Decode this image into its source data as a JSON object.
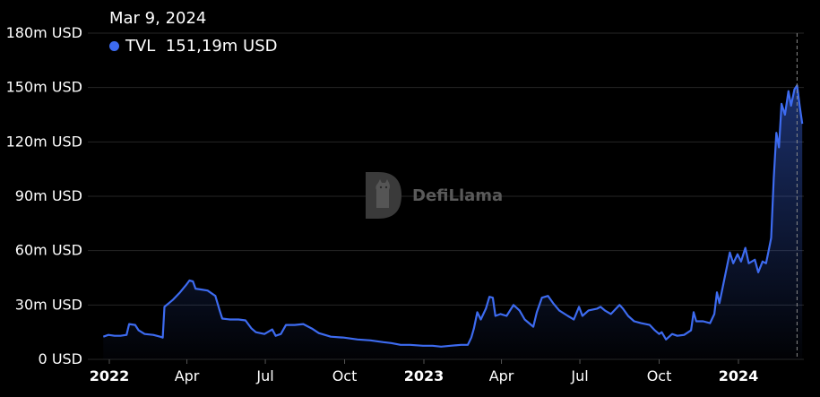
{
  "tooltip": {
    "date": "Mar 9, 2024",
    "series_label": "TVL",
    "value_text": "151,19m USD"
  },
  "watermark": {
    "text": "DefiLlama"
  },
  "colors": {
    "line": "#3d6bf0",
    "background": "#000000",
    "grid": "#262626",
    "crosshair": "#8a8a8a"
  },
  "chart_data": {
    "type": "area",
    "series": [
      {
        "name": "TVL",
        "unit": "m USD"
      }
    ],
    "ylim": [
      0,
      180
    ],
    "y_ticks": [
      {
        "value": 0,
        "label": "0 USD"
      },
      {
        "value": 30,
        "label": "30m USD"
      },
      {
        "value": 60,
        "label": "60m USD"
      },
      {
        "value": 90,
        "label": "90m USD"
      },
      {
        "value": 120,
        "label": "120m USD"
      },
      {
        "value": 150,
        "label": "150m USD"
      },
      {
        "value": 180,
        "label": "180m USD"
      }
    ],
    "x_ticks": [
      {
        "date": "2022-01-01",
        "label": "2022",
        "bold": true
      },
      {
        "date": "2022-04-01",
        "label": "Apr",
        "bold": false
      },
      {
        "date": "2022-07-01",
        "label": "Jul",
        "bold": false
      },
      {
        "date": "2022-10-01",
        "label": "Oct",
        "bold": false
      },
      {
        "date": "2023-01-01",
        "label": "2023",
        "bold": true
      },
      {
        "date": "2023-04-01",
        "label": "Apr",
        "bold": false
      },
      {
        "date": "2023-07-01",
        "label": "Jul",
        "bold": false
      },
      {
        "date": "2023-10-01",
        "label": "Oct",
        "bold": false
      },
      {
        "date": "2024-01-01",
        "label": "2024",
        "bold": true
      }
    ],
    "crosshair_date": "2024-03-09",
    "points": [
      [
        "2021-12-25",
        12.5
      ],
      [
        "2021-12-31",
        13.5
      ],
      [
        "2022-01-07",
        13
      ],
      [
        "2022-01-14",
        13
      ],
      [
        "2022-01-21",
        13.5
      ],
      [
        "2022-01-24",
        19.5
      ],
      [
        "2022-01-31",
        19
      ],
      [
        "2022-02-04",
        16
      ],
      [
        "2022-02-11",
        14
      ],
      [
        "2022-02-21",
        13.5
      ],
      [
        "2022-03-01",
        12.5
      ],
      [
        "2022-03-04",
        12
      ],
      [
        "2022-03-06",
        29
      ],
      [
        "2022-03-11",
        31
      ],
      [
        "2022-03-16",
        33
      ],
      [
        "2022-03-24",
        37
      ],
      [
        "2022-03-31",
        41
      ],
      [
        "2022-04-04",
        43.5
      ],
      [
        "2022-04-08",
        43
      ],
      [
        "2022-04-11",
        39
      ],
      [
        "2022-04-18",
        38.5
      ],
      [
        "2022-04-25",
        38
      ],
      [
        "2022-05-04",
        35
      ],
      [
        "2022-05-09",
        27
      ],
      [
        "2022-05-12",
        22.5
      ],
      [
        "2022-05-21",
        22
      ],
      [
        "2022-05-31",
        22
      ],
      [
        "2022-06-08",
        21.5
      ],
      [
        "2022-06-15",
        17
      ],
      [
        "2022-06-20",
        15
      ],
      [
        "2022-06-30",
        14
      ],
      [
        "2022-07-09",
        16.5
      ],
      [
        "2022-07-13",
        13
      ],
      [
        "2022-07-19",
        14
      ],
      [
        "2022-07-25",
        19
      ],
      [
        "2022-08-04",
        19
      ],
      [
        "2022-08-14",
        19.5
      ],
      [
        "2022-08-24",
        17
      ],
      [
        "2022-09-01",
        14.5
      ],
      [
        "2022-09-15",
        12.5
      ],
      [
        "2022-09-30",
        12
      ],
      [
        "2022-10-16",
        11
      ],
      [
        "2022-10-31",
        10.5
      ],
      [
        "2022-11-15",
        9.5
      ],
      [
        "2022-11-24",
        9
      ],
      [
        "2022-12-05",
        8
      ],
      [
        "2022-12-16",
        8
      ],
      [
        "2022-12-31",
        7.5
      ],
      [
        "2023-01-11",
        7.5
      ],
      [
        "2023-01-21",
        7
      ],
      [
        "2023-02-01",
        7.5
      ],
      [
        "2023-02-13",
        8
      ],
      [
        "2023-02-21",
        8
      ],
      [
        "2023-02-25",
        12
      ],
      [
        "2023-02-28",
        17
      ],
      [
        "2023-03-04",
        26
      ],
      [
        "2023-03-08",
        22
      ],
      [
        "2023-03-14",
        28
      ],
      [
        "2023-03-18",
        34.5
      ],
      [
        "2023-03-22",
        34
      ],
      [
        "2023-03-25",
        24
      ],
      [
        "2023-03-31",
        25
      ],
      [
        "2023-04-07",
        24
      ],
      [
        "2023-04-15",
        30
      ],
      [
        "2023-04-22",
        27
      ],
      [
        "2023-04-28",
        22
      ],
      [
        "2023-05-08",
        18
      ],
      [
        "2023-05-12",
        26
      ],
      [
        "2023-05-18",
        34
      ],
      [
        "2023-05-25",
        35
      ],
      [
        "2023-05-31",
        31
      ],
      [
        "2023-06-07",
        27
      ],
      [
        "2023-06-17",
        24
      ],
      [
        "2023-06-24",
        22
      ],
      [
        "2023-06-30",
        29
      ],
      [
        "2023-07-04",
        24
      ],
      [
        "2023-07-11",
        27
      ],
      [
        "2023-07-21",
        28
      ],
      [
        "2023-07-25",
        29
      ],
      [
        "2023-07-30",
        27
      ],
      [
        "2023-08-06",
        25
      ],
      [
        "2023-08-16",
        30
      ],
      [
        "2023-08-20",
        28
      ],
      [
        "2023-08-26",
        24
      ],
      [
        "2023-09-02",
        21
      ],
      [
        "2023-09-10",
        20
      ],
      [
        "2023-09-20",
        19
      ],
      [
        "2023-09-26",
        16
      ],
      [
        "2023-10-01",
        14
      ],
      [
        "2023-10-04",
        15
      ],
      [
        "2023-10-09",
        11
      ],
      [
        "2023-10-16",
        14
      ],
      [
        "2023-10-22",
        13
      ],
      [
        "2023-10-30",
        13.5
      ],
      [
        "2023-11-07",
        16
      ],
      [
        "2023-11-10",
        26
      ],
      [
        "2023-11-13",
        21
      ],
      [
        "2023-11-21",
        21
      ],
      [
        "2023-11-29",
        20
      ],
      [
        "2023-12-04",
        25
      ],
      [
        "2023-12-07",
        37
      ],
      [
        "2023-12-10",
        31
      ],
      [
        "2023-12-16",
        45
      ],
      [
        "2023-12-22",
        59
      ],
      [
        "2023-12-26",
        53
      ],
      [
        "2023-12-31",
        58
      ],
      [
        "2024-01-04",
        54
      ],
      [
        "2024-01-09",
        61.5
      ],
      [
        "2024-01-13",
        53
      ],
      [
        "2024-01-20",
        55
      ],
      [
        "2024-01-24",
        48
      ],
      [
        "2024-01-29",
        54
      ],
      [
        "2024-02-02",
        53
      ],
      [
        "2024-02-05",
        60
      ],
      [
        "2024-02-08",
        67
      ],
      [
        "2024-02-11",
        100
      ],
      [
        "2024-02-14",
        125
      ],
      [
        "2024-02-17",
        117
      ],
      [
        "2024-02-20",
        141
      ],
      [
        "2024-02-24",
        135
      ],
      [
        "2024-02-28",
        148
      ],
      [
        "2024-03-02",
        140
      ],
      [
        "2024-03-06",
        149
      ],
      [
        "2024-03-09",
        151.19
      ],
      [
        "2024-03-12",
        140
      ],
      [
        "2024-03-15",
        130
      ]
    ]
  }
}
